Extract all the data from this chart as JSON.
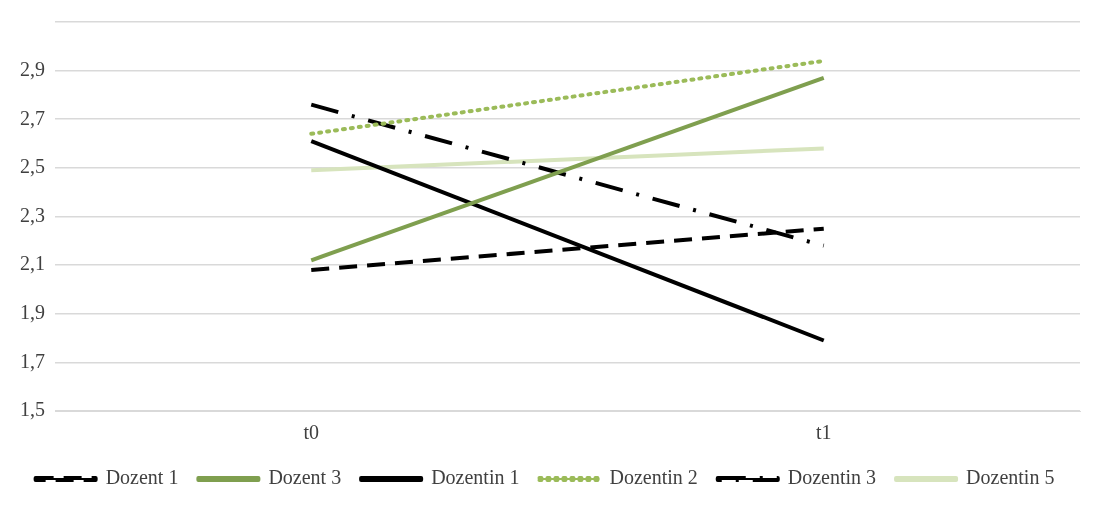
{
  "chart_data": {
    "type": "line",
    "categories": [
      "t0",
      "t1"
    ],
    "series": [
      {
        "name": "Dozent 1",
        "color": "#000000",
        "line_style": "dashed",
        "values": [
          2.08,
          2.25
        ]
      },
      {
        "name": "Dozent 3",
        "color": "#7f9f4f",
        "line_style": "solid",
        "values": [
          2.12,
          2.87
        ]
      },
      {
        "name": "Dozentin 1",
        "color": "#000000",
        "line_style": "solid",
        "values": [
          2.61,
          1.79
        ]
      },
      {
        "name": "Dozentin 2",
        "color": "#9bbb59",
        "line_style": "dotted",
        "values": [
          2.64,
          2.94
        ]
      },
      {
        "name": "Dozentin 3",
        "color": "#000000",
        "line_style": "dashdot",
        "values": [
          2.76,
          2.18
        ]
      },
      {
        "name": "Dozentin 5",
        "color": "#d7e4bd",
        "line_style": "solid",
        "values": [
          2.49,
          2.58
        ]
      }
    ],
    "ylim": [
      1.5,
      3.1
    ],
    "yticks": [
      {
        "value": 1.5,
        "label": "1,5"
      },
      {
        "value": 1.7,
        "label": "1,7"
      },
      {
        "value": 1.9,
        "label": "1,9"
      },
      {
        "value": 2.1,
        "label": "2,1"
      },
      {
        "value": 2.3,
        "label": "2,3"
      },
      {
        "value": 2.5,
        "label": "2,5"
      },
      {
        "value": 2.7,
        "label": "2,7"
      },
      {
        "value": 2.9,
        "label": "2,9"
      },
      {
        "value": 3.1,
        "label": null
      }
    ],
    "grid": "y",
    "legend": "bottom",
    "marker": "none"
  }
}
